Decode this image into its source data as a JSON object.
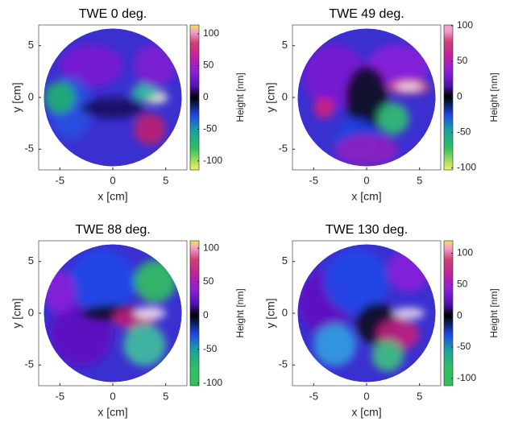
{
  "chart_data": [
    {
      "type": "heatmap",
      "title": "TWE 0 deg.",
      "x_label": "x [cm]",
      "y_label": "y [cm]",
      "colorbar_label": "Height [nm]",
      "xlim": [
        -7,
        7
      ],
      "xticks": [
        -5,
        0,
        5
      ],
      "ylim": [
        -7,
        7
      ],
      "yticks": [
        -5,
        0,
        5
      ],
      "clim": [
        -114,
        114
      ],
      "cticks": [
        100,
        50,
        0,
        -50,
        -100
      ]
    },
    {
      "type": "heatmap",
      "title": "TWE 49 deg.",
      "x_label": "x [cm]",
      "y_label": "y [cm]",
      "colorbar_label": "Height [nm]",
      "xlim": [
        -7,
        7
      ],
      "xticks": [
        -5,
        0,
        5
      ],
      "ylim": [
        -7,
        7
      ],
      "yticks": [
        -5,
        0,
        5
      ],
      "clim": [
        -103,
        101
      ],
      "cticks": [
        100,
        50,
        0,
        -50,
        -100
      ]
    },
    {
      "type": "heatmap",
      "title": "TWE 88 deg.",
      "x_label": "x [cm]",
      "y_label": "y [cm]",
      "colorbar_label": "Height [nm]",
      "xlim": [
        -7,
        7
      ],
      "xticks": [
        -5,
        0,
        5
      ],
      "ylim": [
        -7,
        7
      ],
      "yticks": [
        -5,
        0,
        5
      ],
      "clim": [
        -104,
        111
      ],
      "cticks": [
        100,
        50,
        0,
        -50,
        -100
      ]
    },
    {
      "type": "heatmap",
      "title": "TWE 130 deg.",
      "x_label": "x [cm]",
      "y_label": "y [cm]",
      "colorbar_label": "Height [nm]",
      "xlim": [
        -7,
        7
      ],
      "xticks": [
        -5,
        0,
        5
      ],
      "ylim": [
        -7,
        7
      ],
      "yticks": [
        -5,
        0,
        5
      ],
      "clim": [
        -112,
        120
      ],
      "cticks": [
        100,
        50,
        0,
        -50,
        -100
      ]
    }
  ]
}
